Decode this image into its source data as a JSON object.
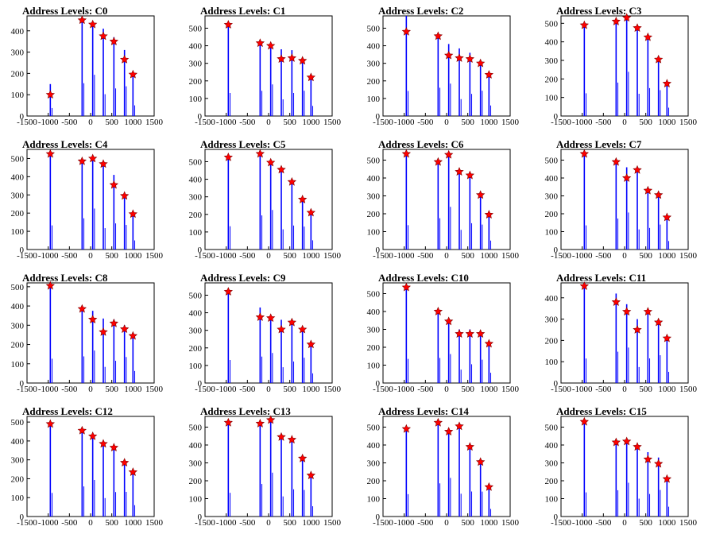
{
  "chart_data": [
    {
      "type": "bar",
      "title": "Address Levels: C0",
      "xlim": [
        -1500,
        1500
      ],
      "ylim": [
        0,
        470
      ],
      "yticks": [
        0,
        100,
        200,
        300,
        400
      ],
      "xticks": [
        -1500,
        -1000,
        -500,
        0,
        500,
        1000,
        1500
      ],
      "x": [
        -950,
        -200,
        50,
        300,
        550,
        800,
        1000
      ],
      "values": [
        150,
        440,
        430,
        410,
        370,
        310,
        200
      ],
      "peaks": [
        100,
        450,
        430,
        375,
        350,
        265,
        195
      ]
    },
    {
      "type": "bar",
      "title": "Address Levels: C1",
      "xlim": [
        -1500,
        1500
      ],
      "ylim": [
        0,
        570
      ],
      "yticks": [
        0,
        100,
        200,
        300,
        400,
        500
      ],
      "xticks": [
        -1500,
        -1000,
        -500,
        0,
        500,
        1000,
        1500
      ],
      "x": [
        -950,
        -200,
        50,
        300,
        550,
        800,
        1000
      ],
      "values": [
        525,
        410,
        400,
        380,
        375,
        320,
        230
      ],
      "peaks": [
        520,
        415,
        400,
        325,
        330,
        315,
        220
      ]
    },
    {
      "type": "bar",
      "title": "Address Levels: C2",
      "xlim": [
        -1500,
        1500
      ],
      "ylim": [
        0,
        570
      ],
      "yticks": [
        0,
        100,
        200,
        300,
        400,
        500
      ],
      "xticks": [
        -1500,
        -1000,
        -500,
        0,
        500,
        1000,
        1500
      ],
      "x": [
        -950,
        -200,
        50,
        300,
        550,
        800,
        1000
      ],
      "values": [
        570,
        460,
        410,
        385,
        360,
        320,
        240
      ],
      "peaks": [
        480,
        455,
        345,
        330,
        325,
        300,
        235
      ]
    },
    {
      "type": "bar",
      "title": "Address Levels: C3",
      "xlim": [
        -1500,
        1500
      ],
      "ylim": [
        0,
        540
      ],
      "yticks": [
        0,
        100,
        200,
        300,
        400,
        500
      ],
      "xticks": [
        -1500,
        -1000,
        -500,
        0,
        500,
        1000,
        1500
      ],
      "x": [
        -950,
        -200,
        50,
        300,
        550,
        800,
        1000
      ],
      "values": [
        490,
        515,
        530,
        480,
        430,
        310,
        180
      ],
      "peaks": [
        490,
        510,
        530,
        475,
        425,
        305,
        175
      ]
    },
    {
      "type": "bar",
      "title": "Address Levels: C4",
      "xlim": [
        -1500,
        1500
      ],
      "ylim": [
        0,
        550
      ],
      "yticks": [
        0,
        100,
        200,
        300,
        400,
        500
      ],
      "xticks": [
        -1500,
        -1000,
        -500,
        0,
        500,
        1000,
        1500
      ],
      "x": [
        -950,
        -200,
        50,
        300,
        550,
        800,
        1000
      ],
      "values": [
        530,
        490,
        500,
        470,
        410,
        300,
        200
      ],
      "peaks": [
        525,
        485,
        500,
        470,
        355,
        295,
        195
      ]
    },
    {
      "type": "bar",
      "title": "Address Levels: C5",
      "xlim": [
        -1500,
        1500
      ],
      "ylim": [
        0,
        570
      ],
      "yticks": [
        0,
        100,
        200,
        300,
        400,
        500
      ],
      "xticks": [
        -1500,
        -1000,
        -500,
        0,
        500,
        1000,
        1500
      ],
      "x": [
        -950,
        -200,
        50,
        300,
        550,
        800,
        1000
      ],
      "values": [
        530,
        555,
        500,
        460,
        390,
        290,
        210
      ],
      "peaks": [
        525,
        545,
        495,
        455,
        385,
        285,
        210
      ]
    },
    {
      "type": "bar",
      "title": "Address Levels: C6",
      "xlim": [
        -1500,
        1500
      ],
      "ylim": [
        0,
        560
      ],
      "yticks": [
        0,
        100,
        200,
        300,
        400,
        500
      ],
      "xticks": [
        -1500,
        -1000,
        -500,
        0,
        500,
        1000,
        1500
      ],
      "x": [
        -950,
        -200,
        50,
        300,
        550,
        800,
        1000
      ],
      "values": [
        545,
        500,
        530,
        440,
        420,
        310,
        200
      ],
      "peaks": [
        535,
        490,
        530,
        435,
        415,
        305,
        195
      ]
    },
    {
      "type": "bar",
      "title": "Address Levels: C7",
      "xlim": [
        -1500,
        1500
      ],
      "ylim": [
        0,
        560
      ],
      "yticks": [
        0,
        100,
        200,
        300,
        400,
        500
      ],
      "xticks": [
        -1500,
        -1000,
        -500,
        0,
        500,
        1000,
        1500
      ],
      "x": [
        -950,
        -200,
        50,
        300,
        550,
        800,
        1000
      ],
      "values": [
        540,
        495,
        460,
        450,
        345,
        310,
        190
      ],
      "peaks": [
        535,
        490,
        400,
        445,
        330,
        305,
        180
      ]
    },
    {
      "type": "bar",
      "title": "Address Levels: C8",
      "xlim": [
        -1500,
        1500
      ],
      "ylim": [
        0,
        520
      ],
      "yticks": [
        0,
        100,
        200,
        300,
        400,
        500
      ],
      "xticks": [
        -1500,
        -1000,
        -500,
        0,
        500,
        1000,
        1500
      ],
      "x": [
        -950,
        -200,
        50,
        300,
        550,
        800,
        1000
      ],
      "values": [
        505,
        395,
        375,
        335,
        330,
        300,
        250
      ],
      "peaks": [
        505,
        385,
        330,
        265,
        310,
        280,
        245
      ]
    },
    {
      "type": "bar",
      "title": "Address Levels: C9",
      "xlim": [
        -1500,
        1500
      ],
      "ylim": [
        0,
        570
      ],
      "yticks": [
        0,
        100,
        200,
        300,
        400,
        500
      ],
      "xticks": [
        -1500,
        -1000,
        -500,
        0,
        500,
        1000,
        1500
      ],
      "x": [
        -950,
        -200,
        50,
        300,
        550,
        800,
        1000
      ],
      "values": [
        525,
        430,
        380,
        360,
        350,
        320,
        220
      ],
      "peaks": [
        520,
        375,
        370,
        305,
        345,
        305,
        220
      ]
    },
    {
      "type": "bar",
      "title": "Address Levels: C10",
      "xlim": [
        -1500,
        1500
      ],
      "ylim": [
        0,
        560
      ],
      "yticks": [
        0,
        100,
        200,
        300,
        400,
        500
      ],
      "xticks": [
        -1500,
        -1000,
        -500,
        0,
        500,
        1000,
        1500
      ],
      "x": [
        -950,
        -200,
        50,
        300,
        550,
        800,
        1000
      ],
      "values": [
        540,
        400,
        360,
        300,
        300,
        290,
        230
      ],
      "peaks": [
        535,
        400,
        345,
        275,
        275,
        275,
        220
      ]
    },
    {
      "type": "bar",
      "title": "Address Levels: C11",
      "xlim": [
        -1500,
        1500
      ],
      "ylim": [
        0,
        470
      ],
      "yticks": [
        0,
        100,
        200,
        300,
        400
      ],
      "xticks": [
        -1500,
        -1000,
        -500,
        0,
        500,
        1000,
        1500
      ],
      "x": [
        -950,
        -200,
        50,
        300,
        550,
        800,
        1000
      ],
      "values": [
        460,
        420,
        370,
        300,
        330,
        290,
        210
      ],
      "peaks": [
        455,
        380,
        335,
        250,
        335,
        285,
        210
      ]
    },
    {
      "type": "bar",
      "title": "Address Levels: C12",
      "xlim": [
        -1500,
        1500
      ],
      "ylim": [
        0,
        530
      ],
      "yticks": [
        0,
        100,
        200,
        300,
        400,
        500
      ],
      "xticks": [
        -1500,
        -1000,
        -500,
        0,
        500,
        1000,
        1500
      ],
      "x": [
        -950,
        -200,
        50,
        300,
        550,
        800,
        1000
      ],
      "values": [
        500,
        455,
        430,
        390,
        370,
        290,
        240
      ],
      "peaks": [
        490,
        455,
        425,
        385,
        365,
        285,
        235
      ]
    },
    {
      "type": "bar",
      "title": "Address Levels: C13",
      "xlim": [
        -1500,
        1500
      ],
      "ylim": [
        0,
        560
      ],
      "yticks": [
        0,
        100,
        200,
        300,
        400,
        500
      ],
      "xticks": [
        -1500,
        -1000,
        -500,
        0,
        500,
        1000,
        1500
      ],
      "x": [
        -950,
        -200,
        50,
        300,
        550,
        800,
        1000
      ],
      "values": [
        530,
        520,
        545,
        450,
        435,
        330,
        230
      ],
      "peaks": [
        525,
        520,
        540,
        445,
        430,
        325,
        230
      ]
    },
    {
      "type": "bar",
      "title": "Address Levels: C14",
      "xlim": [
        -1500,
        1500
      ],
      "ylim": [
        0,
        560
      ],
      "yticks": [
        0,
        100,
        200,
        300,
        400,
        500
      ],
      "xticks": [
        -1500,
        -1000,
        -500,
        0,
        500,
        1000,
        1500
      ],
      "x": [
        -950,
        -200,
        50,
        300,
        550,
        800,
        1000
      ],
      "values": [
        500,
        530,
        480,
        510,
        400,
        310,
        170
      ],
      "peaks": [
        490,
        525,
        475,
        505,
        390,
        305,
        165
      ]
    },
    {
      "type": "bar",
      "title": "Address Levels: C15",
      "xlim": [
        -1500,
        1500
      ],
      "ylim": [
        0,
        560
      ],
      "yticks": [
        0,
        100,
        200,
        300,
        400,
        500
      ],
      "xticks": [
        -1500,
        -1000,
        -500,
        0,
        500,
        1000,
        1500
      ],
      "x": [
        -950,
        -200,
        50,
        300,
        550,
        800,
        1000
      ],
      "values": [
        540,
        420,
        420,
        400,
        360,
        330,
        220
      ],
      "peaks": [
        530,
        415,
        420,
        390,
        320,
        295,
        210
      ]
    }
  ]
}
